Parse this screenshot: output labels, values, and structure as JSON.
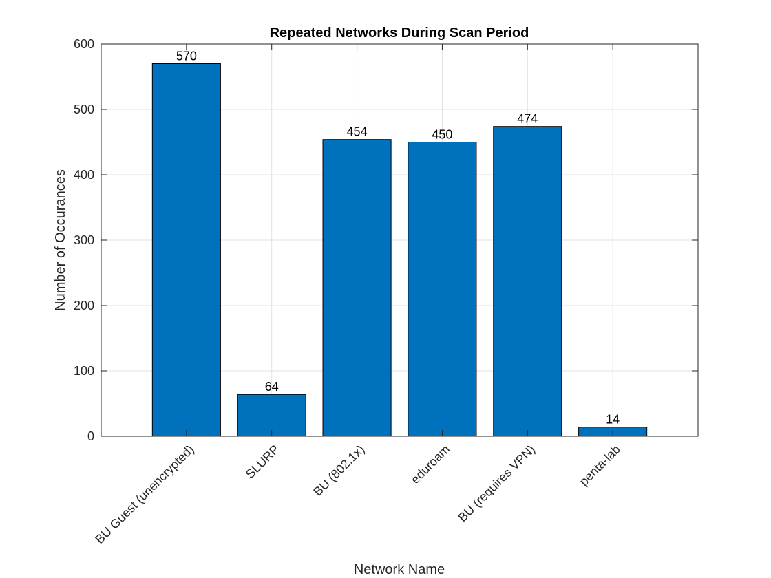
{
  "chart_data": {
    "type": "bar",
    "title": "Repeated Networks During Scan Period",
    "xlabel": "Network Name",
    "ylabel": "Number of Occurances",
    "categories": [
      "BU Guest (unencrypted)",
      "SLURP",
      "BU (802.1x)",
      "eduroam",
      "BU (requires VPN)",
      "penta-lab"
    ],
    "values": [
      570,
      64,
      454,
      450,
      474,
      14
    ],
    "data_labels": [
      "570",
      "64",
      "454",
      "450",
      "474",
      "14"
    ],
    "ylim": [
      0,
      600
    ],
    "yticks": [
      0,
      100,
      200,
      300,
      400,
      500,
      600
    ],
    "ytick_labels": [
      "0",
      "100",
      "200",
      "300",
      "400",
      "500",
      "600"
    ],
    "xlim": [
      0,
      7
    ],
    "grid": true,
    "bar_color": "#0072BD"
  }
}
